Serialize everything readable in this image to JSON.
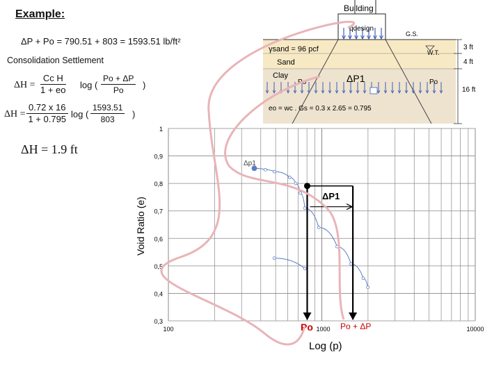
{
  "header": {
    "title": "Example:",
    "delta_p_line": "ΔP + Po =  790.51 + 803 = 1593.51 lb/ft²",
    "consolidation_heading": "Consolidation Settlement",
    "result": "ΔH = 1.9 ft"
  },
  "formula1": {
    "lhs": "ΔH =",
    "num": "Cc H",
    "den": "1 + eo",
    "log": "log (",
    "log_num": "Po + ΔP",
    "log_den": "Po",
    "close": ")"
  },
  "formula2": {
    "lhs": "ΔH =",
    "num": "0.72 x 16",
    "den": "1 + 0.795",
    "log": "log (",
    "log_num": "1593.51",
    "log_den": "803",
    "close": ")"
  },
  "soil_profile": {
    "building": "Building",
    "q_design": "qdesign",
    "gs": "G.S.",
    "gamma_sand": "γsand = 96 pcf",
    "wt": "W.T.",
    "sand": "Sand",
    "clay": "Clay",
    "po_left": "Po",
    "po_right": "Po",
    "delta_p1": "ΔP1",
    "void_eq": "eo = wc . Gs = 0.3 x 2.65 = 0.795",
    "dim_3ft": "3 ft",
    "dim_4ft": "4 ft",
    "dim_16ft": "16 ft",
    "colors": {
      "sand": "#f7e9c4",
      "clay": "#eee3cf",
      "arrows": "#3b5db8"
    }
  },
  "chart_data": {
    "type": "scatter",
    "ylabel": "Void Ratio (e)",
    "xlabel": "Log (p)",
    "x_scale": "log",
    "xlim": [
      100,
      10000
    ],
    "ylim": [
      0.3,
      1.0
    ],
    "x_tick_labels": [
      "100",
      "1000",
      "10000"
    ],
    "y_tick_labels": [
      "1",
      "0,9",
      "0,8",
      "0,7",
      "0,6",
      "0,5",
      "0,4",
      "0,3"
    ],
    "y_ticks": [
      1.0,
      0.9,
      0.8,
      0.7,
      0.6,
      0.5,
      0.4,
      0.3
    ],
    "x_ticks": [
      100,
      1000,
      10000
    ],
    "series": [
      {
        "points": [
          [
            363,
            0.855
          ],
          [
            429,
            0.85
          ],
          [
            491,
            0.843
          ],
          [
            617,
            0.822
          ],
          [
            676,
            0.8
          ],
          [
            724,
            0.765
          ],
          [
            776,
            0.71
          ],
          [
            955,
            0.64
          ],
          [
            1259,
            0.57
          ],
          [
            1549,
            0.507
          ],
          [
            1862,
            0.455
          ],
          [
            1995,
            0.422
          ]
        ]
      },
      {
        "points": [
          [
            490,
            0.528
          ],
          [
            776,
            0.49
          ]
        ]
      }
    ],
    "delta_p_label": "Δp1",
    "p_points": {
      "po": {
        "x": 803,
        "label": "Po"
      },
      "po_plus_dp": {
        "x": 1593.51,
        "label": "Po + ΔP"
      }
    },
    "annotation_dp1": "ΔP1",
    "marker_point": {
      "x": 803,
      "y": 0.791
    }
  }
}
